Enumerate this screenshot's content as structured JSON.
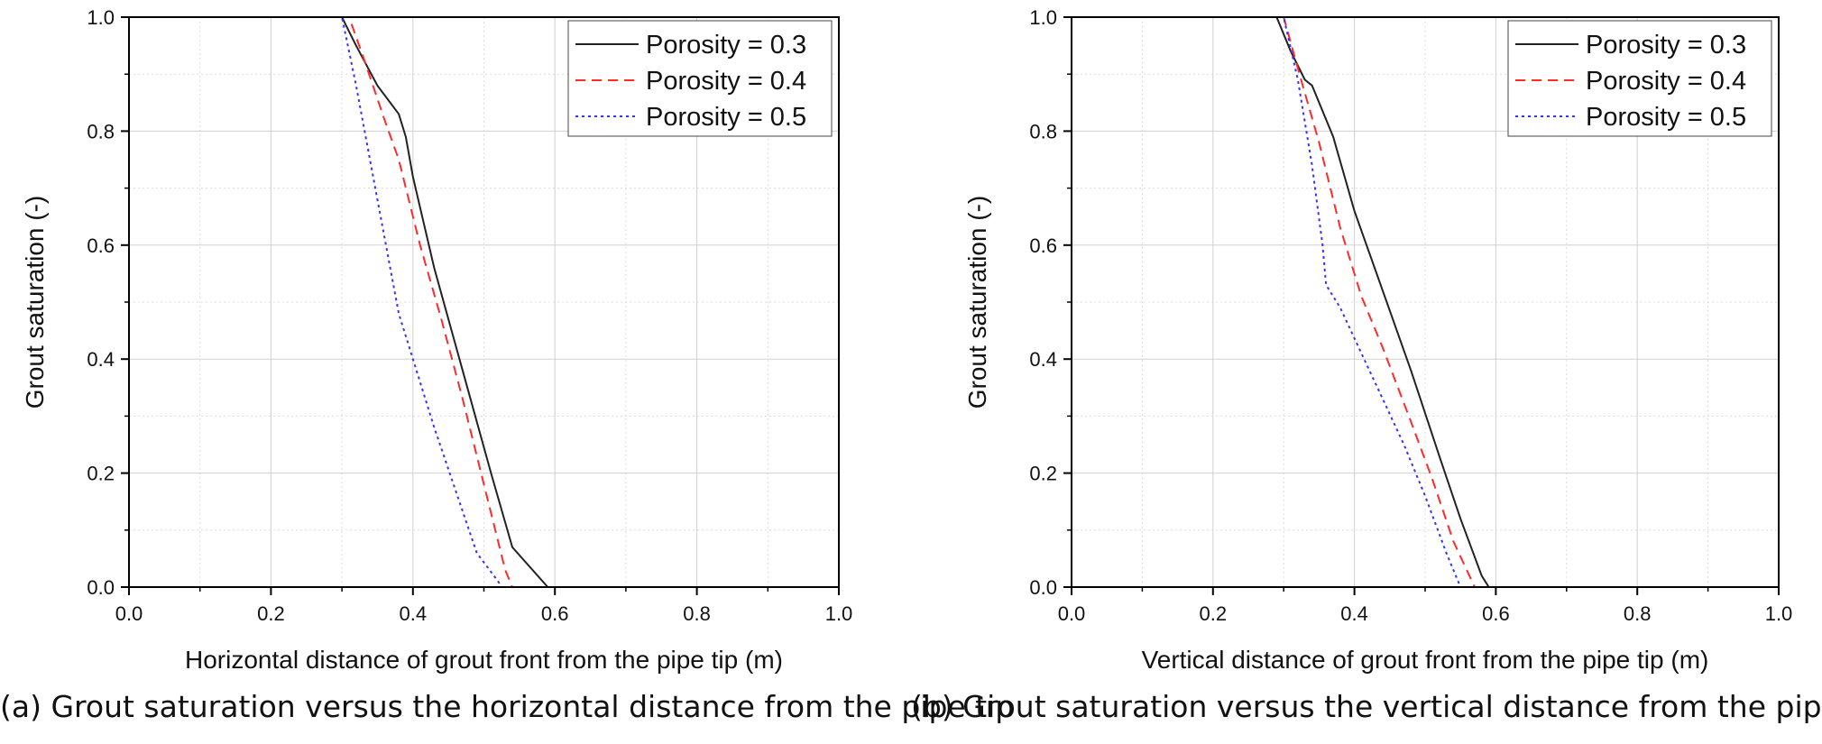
{
  "chart_data": [
    {
      "type": "line",
      "caption": "(a) Grout saturation versus the horizontal distance from the pipe tip",
      "xlabel": "Horizontal distance of grout front from the pipe tip (m)",
      "ylabel": "Grout saturation (-)",
      "xlim": [
        0,
        1
      ],
      "ylim": [
        0,
        1
      ],
      "xticks": [
        "0.0",
        "0.2",
        "0.4",
        "0.6",
        "0.8",
        "1.0"
      ],
      "yticks": [
        "0.0",
        "0.2",
        "0.4",
        "0.6",
        "0.8",
        "1.0"
      ],
      "grid": true,
      "legend_position": "top-right",
      "series": [
        {
          "name": "Porosity = 0.3",
          "color": "#222222",
          "dash": "solid",
          "x": [
            0,
            0.3,
            0.32,
            0.35,
            0.38,
            0.39,
            0.4,
            0.43,
            0.47,
            0.51,
            0.54,
            0.59,
            1.0
          ],
          "y": [
            1.0,
            1.0,
            0.95,
            0.88,
            0.83,
            0.79,
            0.72,
            0.56,
            0.38,
            0.2,
            0.07,
            0.0,
            0.0
          ]
        },
        {
          "name": "Porosity = 0.4",
          "color": "#ff2a2a",
          "dash": "dashed",
          "x": [
            0,
            0.31,
            0.33,
            0.36,
            0.38,
            0.41,
            0.44,
            0.47,
            0.5,
            0.53,
            0.54,
            1.0
          ],
          "y": [
            1.0,
            1.0,
            0.93,
            0.82,
            0.75,
            0.6,
            0.47,
            0.33,
            0.18,
            0.03,
            0.0,
            0.0
          ]
        },
        {
          "name": "Porosity = 0.5",
          "color": "#3333ff",
          "dash": "dotted",
          "x": [
            0,
            0.3,
            0.32,
            0.35,
            0.38,
            0.4,
            0.43,
            0.46,
            0.49,
            0.52,
            0.525,
            1.0
          ],
          "y": [
            1.0,
            1.0,
            0.88,
            0.68,
            0.48,
            0.4,
            0.28,
            0.17,
            0.06,
            0.01,
            0.0,
            0.0
          ]
        }
      ]
    },
    {
      "type": "line",
      "caption": "(b) Grout saturation versus the vertical distance from the pipe tip",
      "xlabel": "Vertical distance of grout front from the pipe tip (m)",
      "ylabel": "Grout saturation (-)",
      "xlim": [
        0,
        1
      ],
      "ylim": [
        0,
        1
      ],
      "xticks": [
        "0.0",
        "0.2",
        "0.4",
        "0.6",
        "0.8",
        "1.0"
      ],
      "yticks": [
        "0.0",
        "0.2",
        "0.4",
        "0.6",
        "0.8",
        "1.0"
      ],
      "grid": true,
      "legend_position": "top-right",
      "series": [
        {
          "name": "Porosity = 0.3",
          "color": "#222222",
          "dash": "solid",
          "x": [
            0,
            0.29,
            0.31,
            0.33,
            0.34,
            0.37,
            0.4,
            0.44,
            0.48,
            0.52,
            0.55,
            0.58,
            0.59,
            1.0
          ],
          "y": [
            1.0,
            1.0,
            0.94,
            0.89,
            0.88,
            0.79,
            0.66,
            0.52,
            0.38,
            0.23,
            0.12,
            0.02,
            0.0,
            0.0
          ]
        },
        {
          "name": "Porosity = 0.4",
          "color": "#ff2a2a",
          "dash": "dashed",
          "x": [
            0,
            0.3,
            0.32,
            0.35,
            0.38,
            0.41,
            0.44,
            0.48,
            0.51,
            0.54,
            0.57,
            1.0
          ],
          "y": [
            1.0,
            1.0,
            0.91,
            0.78,
            0.63,
            0.51,
            0.42,
            0.29,
            0.19,
            0.08,
            0.0,
            0.0
          ]
        },
        {
          "name": "Porosity = 0.5",
          "color": "#3333ff",
          "dash": "dotted",
          "x": [
            0,
            0.3,
            0.32,
            0.34,
            0.355,
            0.36,
            0.38,
            0.41,
            0.44,
            0.47,
            0.5,
            0.53,
            0.55,
            1.0
          ],
          "y": [
            1.0,
            1.0,
            0.89,
            0.74,
            0.6,
            0.53,
            0.49,
            0.41,
            0.33,
            0.25,
            0.16,
            0.06,
            0.0,
            0.0
          ]
        }
      ]
    }
  ]
}
